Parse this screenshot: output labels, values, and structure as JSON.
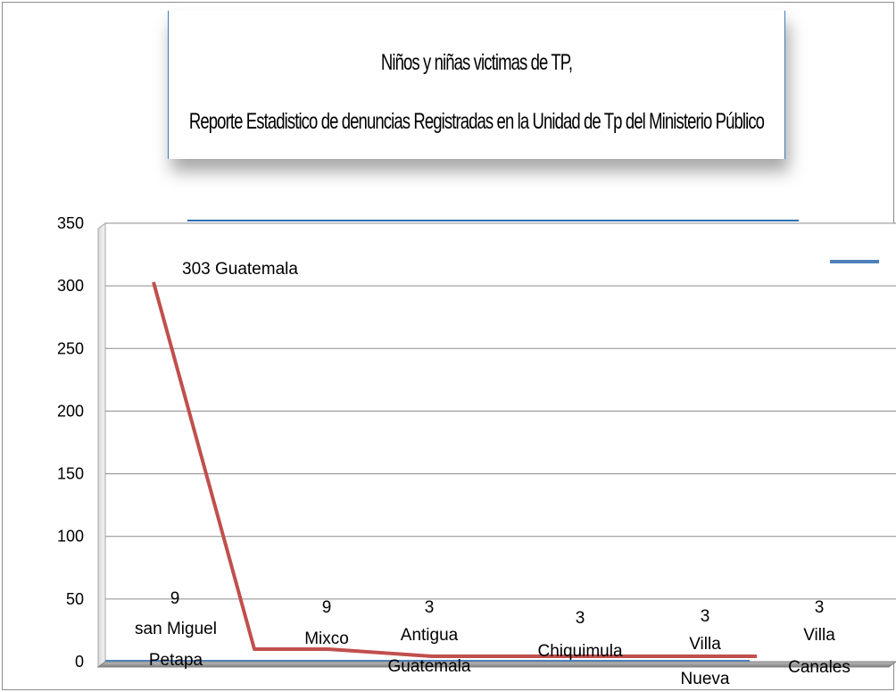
{
  "chart_data": {
    "type": "line",
    "title": "Niños y niñas victimas de TP,",
    "subtitle": "Reporte Estadistico de denuncias Registradas en la Unidad de Tp del Ministerio Público",
    "xlabel": "",
    "ylabel": "",
    "ylim": [
      0,
      350
    ],
    "yticks": [
      "0",
      "50",
      "100",
      "150",
      "200",
      "250",
      "300",
      "350"
    ],
    "grid": true,
    "legend": "top-right",
    "series_color": "#c0504d",
    "legend_color": "#4f81bd",
    "points": [
      {
        "value": 303,
        "label_value": "303",
        "label_name": "Guatemala"
      },
      {
        "value": 9,
        "label_value": "9",
        "label_name": "san Miguel Petapa"
      },
      {
        "value": 9,
        "label_value": "9",
        "label_name": "Mixco"
      },
      {
        "value": 3,
        "label_value": "3",
        "label_name": "Antigua Guatemala"
      },
      {
        "value": 3,
        "label_value": "3",
        "label_name": "Chiquimula"
      },
      {
        "value": 3,
        "label_value": "3",
        "label_name": "Villa Nueva"
      },
      {
        "value": 3,
        "label_value": "3",
        "label_name": "Villa Canales"
      }
    ]
  }
}
